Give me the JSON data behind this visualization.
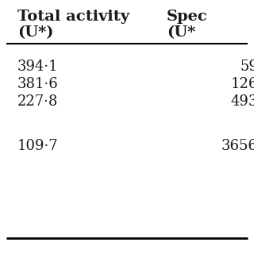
{
  "col1_header_line1": "Total activity",
  "col1_header_line2": "(U*)",
  "col2_header_line1": "Spec",
  "col2_header_line2": "(U*",
  "col1_values": [
    "394·1",
    "381·6",
    "227·8",
    "",
    "109·7"
  ],
  "col2_values": [
    "59",
    "126",
    "493",
    "",
    "3656"
  ],
  "background_color": "#ffffff",
  "text_color": "#1a1a1a",
  "font_size": 13,
  "header_font_size": 14
}
